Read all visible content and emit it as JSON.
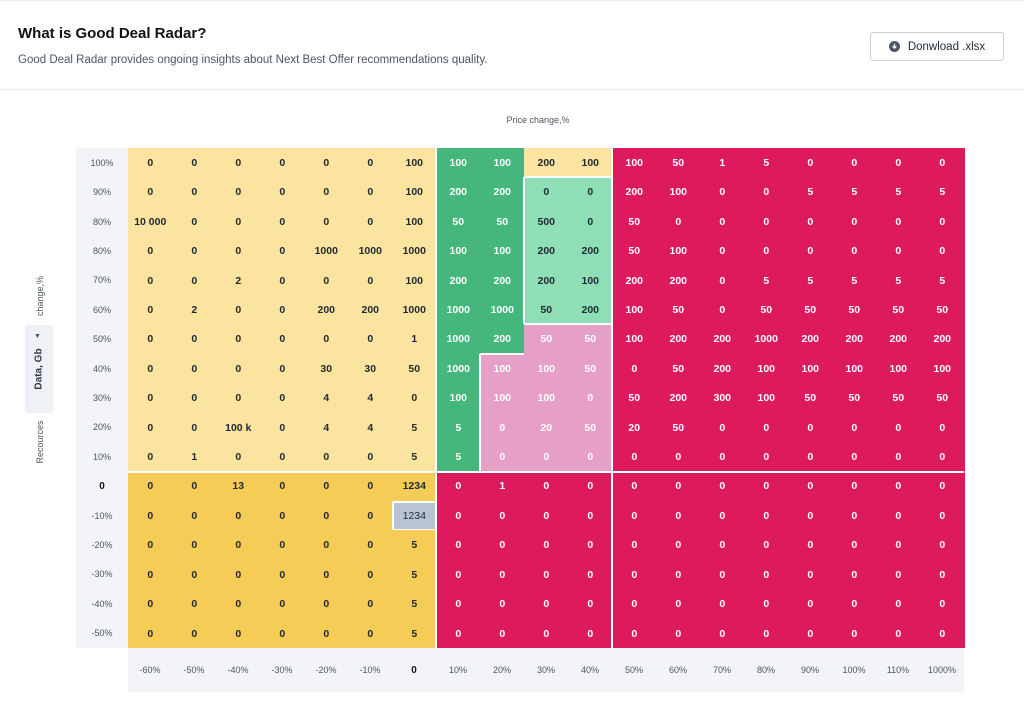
{
  "header": {
    "title": "What is Good Deal Radar?",
    "subtitle": "Good Deal Radar provides ongoing insights about Next Best Offer recommendations quality.",
    "download_label": "Donwload .xlsx"
  },
  "colors": {
    "light_yellow": "#fbe3a0",
    "yellow": "#f5cc55",
    "green": "#45b77d",
    "light_green": "#8fdfb6",
    "pink": "#e6a0c8",
    "magenta": "#dd1a5e",
    "highlight": "#b8c4d2"
  },
  "chart_data": {
    "type": "heatmap",
    "xlabel": "Price change,%",
    "ylabel_prefix": "Recources",
    "ylabel_suffix": "change,%",
    "y_selector": "Data, Gb",
    "x": [
      "-60%",
      "-50%",
      "-40%",
      "-30%",
      "-20%",
      "-10%",
      "0",
      "10%",
      "20%",
      "30%",
      "40%",
      "50%",
      "60%",
      "70%",
      "80%",
      "90%",
      "100%",
      "110%",
      "1000%"
    ],
    "y": [
      "100%",
      "90%",
      "80%",
      "80%",
      "70%",
      "60%",
      "50%",
      "40%",
      "30%",
      "20%",
      "10%",
      "0",
      "-10%",
      "-20%",
      "-30%",
      "-40%",
      "-50%"
    ],
    "values": [
      [
        "0",
        "0",
        "0",
        "0",
        "0",
        "0",
        "100",
        "100",
        "100",
        "200",
        "100",
        "100",
        "50",
        "1",
        "5",
        "0",
        "0",
        "0",
        "0"
      ],
      [
        "0",
        "0",
        "0",
        "0",
        "0",
        "0",
        "100",
        "200",
        "200",
        "0",
        "0",
        "200",
        "100",
        "0",
        "0",
        "5",
        "5",
        "5",
        "5"
      ],
      [
        "10 000",
        "0",
        "0",
        "0",
        "0",
        "0",
        "100",
        "50",
        "50",
        "500",
        "0",
        "50",
        "0",
        "0",
        "0",
        "0",
        "0",
        "0",
        "0"
      ],
      [
        "0",
        "0",
        "0",
        "0",
        "1000",
        "1000",
        "1000",
        "100",
        "100",
        "200",
        "200",
        "50",
        "100",
        "0",
        "0",
        "0",
        "0",
        "0",
        "0"
      ],
      [
        "0",
        "0",
        "2",
        "0",
        "0",
        "0",
        "100",
        "200",
        "200",
        "200",
        "100",
        "200",
        "200",
        "0",
        "5",
        "5",
        "5",
        "5",
        "5"
      ],
      [
        "0",
        "2",
        "0",
        "0",
        "200",
        "200",
        "1000",
        "1000",
        "1000",
        "50",
        "200",
        "100",
        "50",
        "0",
        "50",
        "50",
        "50",
        "50",
        "50"
      ],
      [
        "0",
        "0",
        "0",
        "0",
        "0",
        "0",
        "1",
        "1000",
        "200",
        "50",
        "50",
        "100",
        "200",
        "200",
        "1000",
        "200",
        "200",
        "200",
        "200"
      ],
      [
        "0",
        "0",
        "0",
        "0",
        "30",
        "30",
        "50",
        "1000",
        "100",
        "100",
        "50",
        "0",
        "50",
        "200",
        "100",
        "100",
        "100",
        "100",
        "100"
      ],
      [
        "0",
        "0",
        "0",
        "0",
        "4",
        "4",
        "0",
        "100",
        "100",
        "100",
        "0",
        "50",
        "200",
        "300",
        "100",
        "50",
        "50",
        "50",
        "50"
      ],
      [
        "0",
        "0",
        "100 k",
        "0",
        "4",
        "4",
        "5",
        "5",
        "0",
        "20",
        "50",
        "20",
        "50",
        "0",
        "0",
        "0",
        "0",
        "0",
        "0"
      ],
      [
        "0",
        "1",
        "0",
        "0",
        "0",
        "0",
        "5",
        "5",
        "0",
        "0",
        "0",
        "0",
        "0",
        "0",
        "0",
        "0",
        "0",
        "0",
        "0"
      ],
      [
        "0",
        "0",
        "13",
        "0",
        "0",
        "0",
        "1234",
        "0",
        "1",
        "0",
        "0",
        "0",
        "0",
        "0",
        "0",
        "0",
        "0",
        "0",
        "0"
      ],
      [
        "0",
        "0",
        "0",
        "0",
        "0",
        "0",
        "1234",
        "0",
        "0",
        "0",
        "0",
        "0",
        "0",
        "0",
        "0",
        "0",
        "0",
        "0",
        "0"
      ],
      [
        "0",
        "0",
        "0",
        "0",
        "0",
        "0",
        "5",
        "0",
        "0",
        "0",
        "0",
        "0",
        "0",
        "0",
        "0",
        "0",
        "0",
        "0",
        "0"
      ],
      [
        "0",
        "0",
        "0",
        "0",
        "0",
        "0",
        "5",
        "0",
        "0",
        "0",
        "0",
        "0",
        "0",
        "0",
        "0",
        "0",
        "0",
        "0",
        "0"
      ],
      [
        "0",
        "0",
        "0",
        "0",
        "0",
        "0",
        "5",
        "0",
        "0",
        "0",
        "0",
        "0",
        "0",
        "0",
        "0",
        "0",
        "0",
        "0",
        "0"
      ],
      [
        "0",
        "0",
        "0",
        "0",
        "0",
        "0",
        "5",
        "0",
        "0",
        "0",
        "0",
        "0",
        "0",
        "0",
        "0",
        "0",
        "0",
        "0",
        "0"
      ]
    ],
    "highlighted_cell": {
      "row": 12,
      "col": 6
    },
    "bold_row_label": "0",
    "bold_col_label": "0"
  }
}
